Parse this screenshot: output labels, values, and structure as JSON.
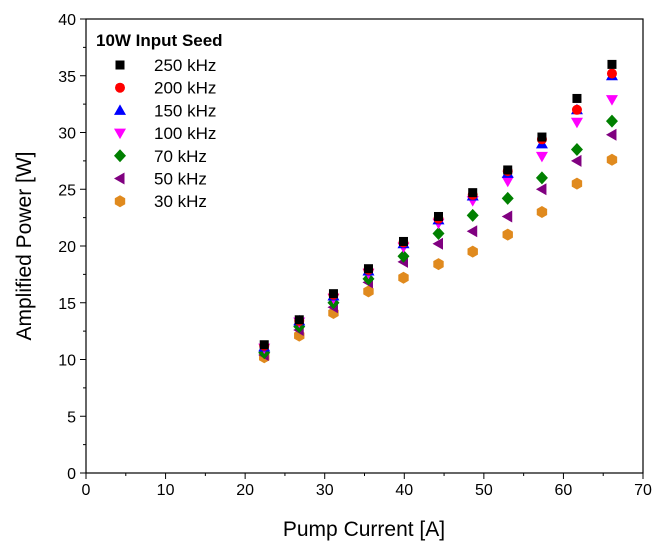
{
  "chart_data": {
    "type": "scatter",
    "title": "",
    "xlabel": "Pump Current [A]",
    "ylabel": "Amplified Power [W]",
    "xlim": [
      0,
      70
    ],
    "ylim": [
      0,
      40
    ],
    "xticks": [
      0,
      10,
      20,
      30,
      40,
      50,
      60,
      70
    ],
    "yticks": [
      0,
      5,
      10,
      15,
      20,
      25,
      30,
      35,
      40
    ],
    "grid": false,
    "legend_title": "10W Input Seed",
    "legend_position": "top-left",
    "x": [
      22.4,
      26.8,
      31.1,
      35.5,
      39.9,
      44.3,
      48.6,
      53.0,
      57.3,
      61.7,
      66.1
    ],
    "series": [
      {
        "name": "250 kHz",
        "marker": "square",
        "color": "#000000",
        "values": [
          11.3,
          13.5,
          15.8,
          18.0,
          20.4,
          22.6,
          24.7,
          26.7,
          29.6,
          33.0,
          36.0
        ]
      },
      {
        "name": "200 kHz",
        "marker": "circle",
        "color": "#ff0000",
        "values": [
          11.2,
          13.4,
          15.7,
          17.9,
          20.3,
          22.4,
          24.5,
          26.6,
          29.4,
          32.0,
          35.2
        ]
      },
      {
        "name": "150 kHz",
        "marker": "triangle-up",
        "color": "#0000ff",
        "values": [
          11.1,
          13.4,
          15.6,
          17.8,
          20.2,
          22.3,
          24.4,
          26.4,
          29.0,
          32.0,
          35.0
        ]
      },
      {
        "name": "100 kHz",
        "marker": "triangle-down",
        "color": "#ff00ff",
        "values": [
          11.0,
          13.3,
          15.4,
          17.6,
          19.9,
          22.0,
          24.0,
          25.7,
          27.9,
          30.9,
          32.9
        ]
      },
      {
        "name": "70  kHz",
        "marker": "diamond",
        "color": "#008000",
        "values": [
          10.6,
          12.9,
          15.0,
          17.1,
          19.1,
          21.1,
          22.7,
          24.2,
          26.0,
          28.5,
          31.0
        ]
      },
      {
        "name": "50  kHz",
        "marker": "triangle-left",
        "color": "#800080",
        "values": [
          10.4,
          12.6,
          14.6,
          16.8,
          18.6,
          20.2,
          21.3,
          22.6,
          25.0,
          27.5,
          29.8
        ]
      },
      {
        "name": "30  kHz",
        "marker": "hexagon",
        "color": "#e08a1e",
        "values": [
          10.2,
          12.1,
          14.1,
          16.0,
          17.2,
          18.4,
          19.5,
          21.0,
          23.0,
          25.5,
          27.6
        ]
      }
    ]
  }
}
